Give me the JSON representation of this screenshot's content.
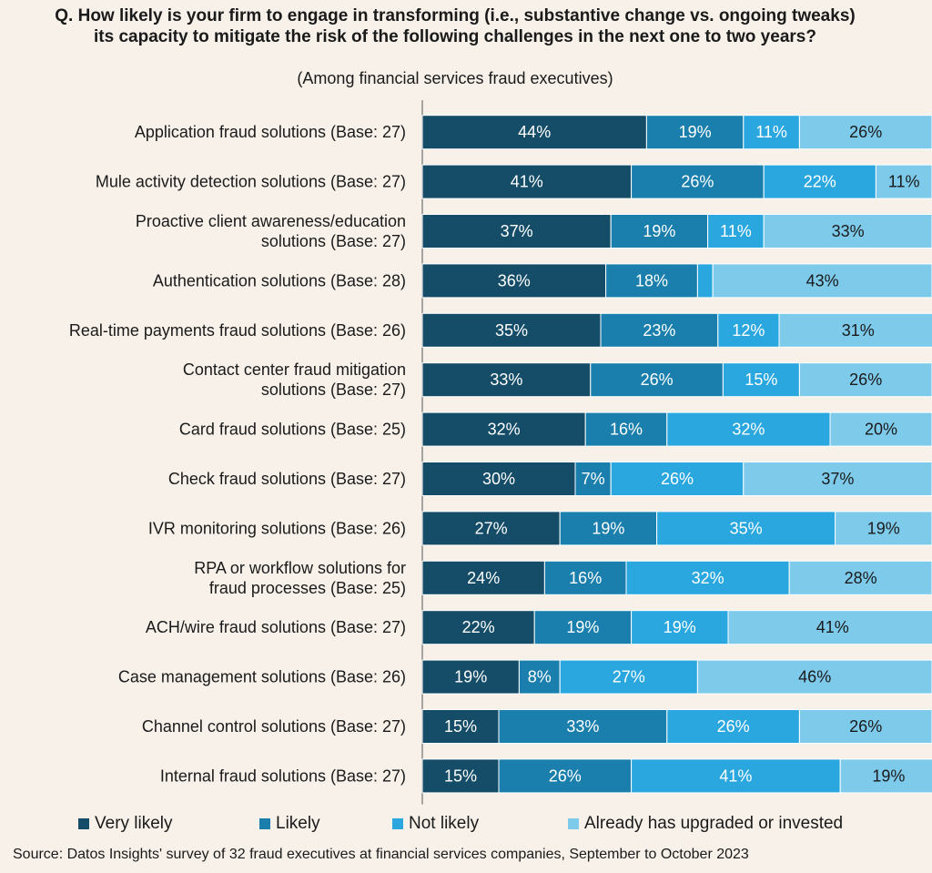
{
  "title": "Q. How likely is your firm to engage in transforming (i.e., substantive change vs. ongoing tweaks) its capacity to mitigate the risk of the following challenges in the next one to two years?",
  "subtitle": "(Among financial services fraud executives)",
  "source": "Source: Datos Insights' survey of 32 fraud executives at financial services companies, September to October 2023",
  "colors": {
    "background": "#f7f1ea",
    "very_likely": "#154d68",
    "likely": "#1a7fac",
    "not_likely": "#2aa7df",
    "already": "#7dcaeb"
  },
  "chart_data": {
    "type": "bar",
    "orientation": "horizontal",
    "stacked": true,
    "xlim": [
      0,
      100
    ],
    "categories": [
      "Application fraud solutions (Base: 27)",
      "Mule activity detection solutions (Base: 27)",
      "Proactive client awareness/education solutions (Base: 27)",
      "Authentication solutions (Base: 28)",
      "Real-time payments fraud solutions (Base: 26)",
      "Contact center fraud mitigation solutions (Base: 27)",
      "Card fraud solutions (Base: 25)",
      "Check fraud solutions (Base: 27)",
      "IVR monitoring solutions (Base: 26)",
      "RPA or workflow solutions for fraud processes (Base: 25)",
      "ACH/wire fraud solutions (Base: 27)",
      "Case management solutions (Base: 26)",
      "Channel control solutions (Base: 27)",
      "Internal fraud solutions (Base: 27)"
    ],
    "category_lines": [
      [
        "Application fraud solutions (Base: 27)"
      ],
      [
        "Mule activity detection solutions (Base: 27)"
      ],
      [
        "Proactive client awareness/education",
        "solutions (Base: 27)"
      ],
      [
        "Authentication solutions (Base: 28)"
      ],
      [
        "Real-time payments fraud solutions (Base: 26)"
      ],
      [
        "Contact center fraud mitigation",
        "solutions (Base: 27)"
      ],
      [
        "Card fraud solutions (Base: 25)"
      ],
      [
        "Check fraud solutions (Base: 27)"
      ],
      [
        "IVR monitoring solutions (Base: 26)"
      ],
      [
        "RPA or workflow solutions for",
        "fraud processes (Base: 25)"
      ],
      [
        "ACH/wire fraud solutions (Base: 27)"
      ],
      [
        "Case management solutions (Base: 26)"
      ],
      [
        "Channel control solutions (Base: 27)"
      ],
      [
        "Internal fraud solutions (Base: 27)"
      ]
    ],
    "series": [
      {
        "name": "Very likely",
        "color": "#154d68",
        "label_color": "#ffffff",
        "values": [
          44,
          41,
          37,
          36,
          35,
          33,
          32,
          30,
          27,
          24,
          22,
          19,
          15,
          15
        ]
      },
      {
        "name": "Likely",
        "color": "#1a7fac",
        "label_color": "#ffffff",
        "values": [
          19,
          26,
          19,
          18,
          23,
          26,
          16,
          7,
          19,
          16,
          19,
          8,
          33,
          26
        ]
      },
      {
        "name": "Not likely",
        "color": "#2aa7df",
        "label_color": "#ffffff",
        "values": [
          11,
          22,
          11,
          3,
          12,
          15,
          32,
          26,
          35,
          32,
          19,
          27,
          26,
          41
        ]
      },
      {
        "name": "Already has upgraded or invested",
        "color": "#7dcaeb",
        "label_color": "#1a1a1a",
        "values": [
          26,
          11,
          33,
          43,
          31,
          26,
          20,
          37,
          19,
          28,
          41,
          46,
          26,
          19
        ]
      }
    ],
    "data_labels": [
      [
        "44%",
        "19%",
        "11%",
        "26%"
      ],
      [
        "41%",
        "26%",
        "22%",
        "11%"
      ],
      [
        "37%",
        "19%",
        "11%",
        "33%"
      ],
      [
        "36%",
        "18%",
        "",
        "43%"
      ],
      [
        "35%",
        "23%",
        "12%",
        "31%"
      ],
      [
        "33%",
        "26%",
        "15%",
        "26%"
      ],
      [
        "32%",
        "16%",
        "32%",
        "20%"
      ],
      [
        "30%",
        "7%",
        "26%",
        "37%"
      ],
      [
        "27%",
        "19%",
        "35%",
        "19%"
      ],
      [
        "24%",
        "16%",
        "32%",
        "28%"
      ],
      [
        "22%",
        "19%",
        "19%",
        "41%"
      ],
      [
        "19%",
        "8%",
        "27%",
        "46%"
      ],
      [
        "15%",
        "33%",
        "26%",
        "26%"
      ],
      [
        "15%",
        "26%",
        "41%",
        "19%"
      ]
    ],
    "legend_position": "bottom"
  }
}
